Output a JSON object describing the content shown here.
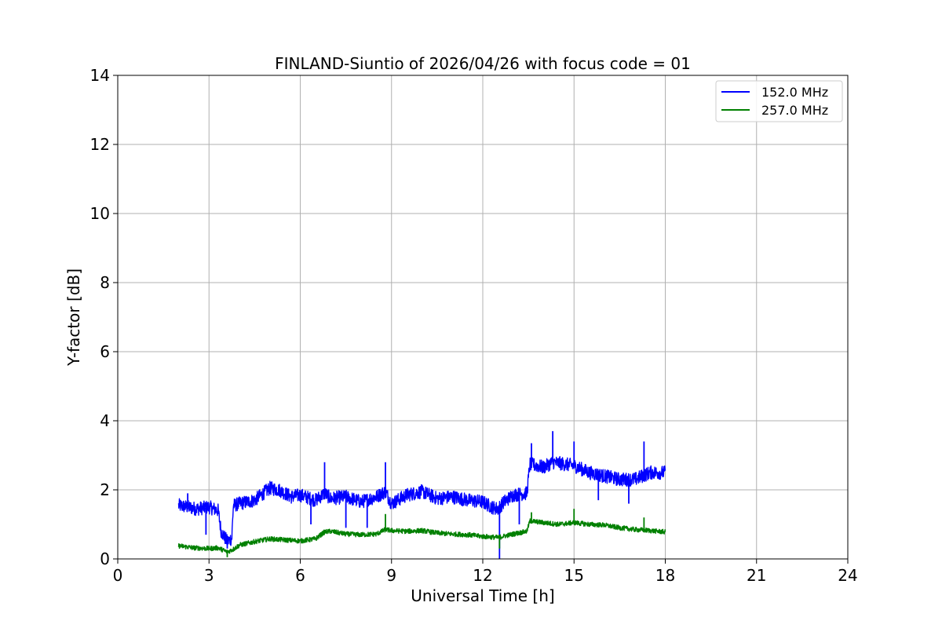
{
  "chart_data": {
    "type": "line",
    "title": "FINLAND-Siuntio of 2026/04/26 with focus code = 01",
    "xlabel": "Universal Time [h]",
    "ylabel": "Y-factor [dB]",
    "xlim": [
      0,
      24
    ],
    "ylim": [
      0,
      14
    ],
    "xticks": [
      0,
      3,
      6,
      9,
      12,
      15,
      18,
      21,
      24
    ],
    "yticks": [
      0,
      2,
      4,
      6,
      8,
      10,
      12,
      14
    ],
    "grid": true,
    "legend_position": "top-right",
    "series": [
      {
        "name": " 152.0 MHz",
        "color": "#0000ff",
        "x": [
          2.0,
          2.3,
          2.6,
          3.0,
          3.3,
          3.4,
          3.6,
          3.75,
          3.8,
          4.0,
          4.5,
          5.0,
          5.3,
          5.7,
          6.0,
          6.5,
          6.8,
          7.0,
          7.5,
          8.0,
          8.5,
          8.8,
          9.0,
          9.5,
          10.0,
          10.5,
          11.0,
          11.5,
          12.0,
          12.3,
          12.5,
          12.7,
          13.0,
          13.45,
          13.55,
          14.0,
          14.3,
          15.0,
          15.5,
          16.0,
          16.5,
          17.0,
          17.5,
          18.0
        ],
        "y": [
          1.55,
          1.5,
          1.45,
          1.5,
          1.4,
          0.8,
          0.5,
          0.6,
          1.55,
          1.6,
          1.7,
          2.05,
          2.0,
          1.8,
          1.85,
          1.7,
          1.9,
          1.75,
          1.8,
          1.65,
          1.8,
          1.95,
          1.6,
          1.85,
          1.95,
          1.75,
          1.8,
          1.7,
          1.65,
          1.5,
          1.45,
          1.65,
          1.85,
          1.9,
          2.75,
          2.65,
          2.8,
          2.7,
          2.5,
          2.4,
          2.3,
          2.3,
          2.5,
          2.5
        ],
        "spikes_up": [
          [
            2.3,
            1.9
          ],
          [
            6.8,
            2.8
          ],
          [
            8.8,
            2.8
          ],
          [
            13.6,
            3.35
          ],
          [
            14.3,
            3.7
          ],
          [
            15.0,
            3.4
          ],
          [
            17.3,
            3.4
          ]
        ],
        "spikes_down": [
          [
            2.9,
            0.7
          ],
          [
            3.6,
            0.3
          ],
          [
            6.35,
            1.0
          ],
          [
            7.5,
            0.9
          ],
          [
            8.2,
            0.9
          ],
          [
            12.55,
            0.0
          ],
          [
            13.2,
            1.0
          ],
          [
            15.8,
            1.7
          ],
          [
            16.8,
            1.6
          ]
        ]
      },
      {
        "name": "257.0 MHz",
        "color": "#008000",
        "x": [
          2.0,
          2.5,
          3.0,
          3.3,
          3.6,
          3.8,
          4.0,
          4.5,
          5.0,
          5.5,
          6.0,
          6.5,
          6.8,
          7.0,
          7.5,
          8.0,
          8.5,
          8.8,
          9.0,
          9.5,
          10.0,
          10.5,
          11.0,
          11.5,
          12.0,
          12.5,
          13.0,
          13.45,
          13.55,
          14.0,
          14.5,
          15.0,
          15.5,
          16.0,
          16.5,
          17.0,
          17.5,
          18.0
        ],
        "y": [
          0.38,
          0.32,
          0.3,
          0.32,
          0.2,
          0.28,
          0.4,
          0.5,
          0.58,
          0.55,
          0.52,
          0.58,
          0.78,
          0.8,
          0.72,
          0.7,
          0.72,
          0.85,
          0.82,
          0.8,
          0.82,
          0.75,
          0.72,
          0.7,
          0.65,
          0.62,
          0.72,
          0.8,
          1.1,
          1.05,
          1.0,
          1.05,
          1.0,
          0.98,
          0.9,
          0.85,
          0.82,
          0.78
        ],
        "spikes_up": [
          [
            8.8,
            1.3
          ],
          [
            13.6,
            1.35
          ],
          [
            15.0,
            1.45
          ],
          [
            17.3,
            1.2
          ]
        ],
        "spikes_down": [
          [
            3.6,
            0.05
          ],
          [
            12.55,
            0.3
          ]
        ]
      }
    ]
  }
}
